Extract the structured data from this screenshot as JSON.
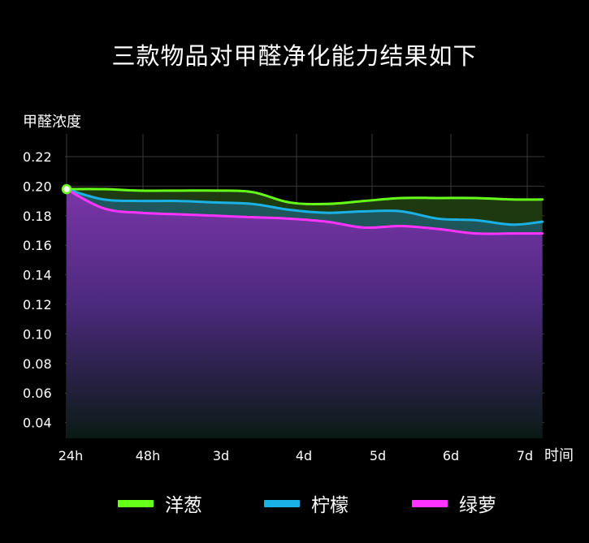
{
  "title": "三款物品对甲醛净化能力结果如下",
  "chart_data": {
    "type": "area",
    "ylabel": "甲醛浓度",
    "xlabel": "时间",
    "categories": [
      "24h",
      "48h",
      "3d",
      "4d",
      "5d",
      "6d",
      "7d"
    ],
    "yticks": [
      "0.22",
      "0.20",
      "0.18",
      "0.16",
      "0.14",
      "0.12",
      "0.10",
      "0.08",
      "0.06",
      "0.04"
    ],
    "ylim": [
      0.03,
      0.235
    ],
    "grid": true,
    "legend_position": "bottom",
    "series": [
      {
        "name": "洋葱",
        "color": "#66ff1a",
        "x": [
          0,
          0.5,
          1,
          1.5,
          2,
          2.5,
          3,
          3.5,
          4,
          4.5,
          5,
          5.5,
          6,
          6.4
        ],
        "values": [
          0.198,
          0.198,
          0.197,
          0.197,
          0.197,
          0.196,
          0.189,
          0.188,
          0.19,
          0.192,
          0.192,
          0.192,
          0.191,
          0.191
        ]
      },
      {
        "name": "柠檬",
        "color": "#1ab2e6",
        "x": [
          0,
          0.5,
          1,
          1.5,
          2,
          2.5,
          3,
          3.5,
          4,
          4.5,
          5,
          5.5,
          6,
          6.4
        ],
        "values": [
          0.198,
          0.191,
          0.19,
          0.19,
          0.189,
          0.188,
          0.184,
          0.182,
          0.183,
          0.183,
          0.178,
          0.177,
          0.174,
          0.176
        ]
      },
      {
        "name": "绿萝",
        "color": "#ff33ff",
        "x": [
          0,
          0.5,
          1,
          1.5,
          2,
          2.5,
          3,
          3.5,
          4,
          4.5,
          5,
          5.5,
          6,
          6.4
        ],
        "values": [
          0.198,
          0.185,
          0.182,
          0.181,
          0.18,
          0.179,
          0.178,
          0.176,
          0.172,
          0.173,
          0.171,
          0.168,
          0.168,
          0.168
        ]
      }
    ]
  }
}
